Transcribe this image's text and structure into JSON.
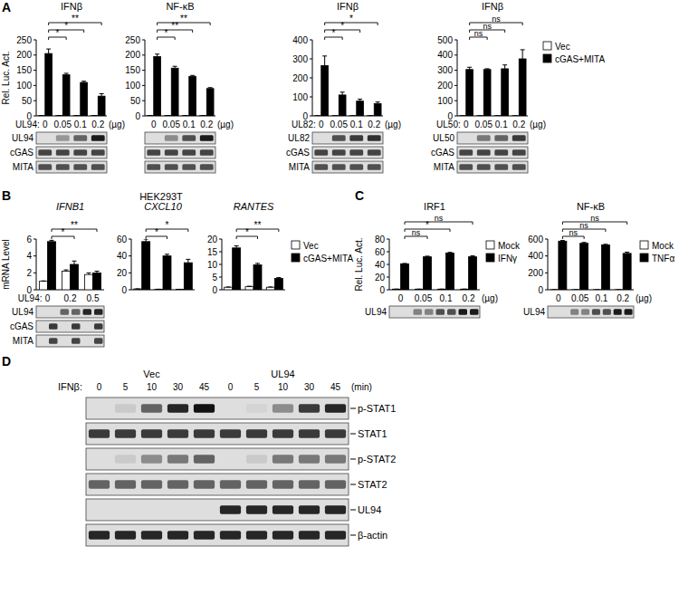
{
  "figure": {
    "panel_labels": [
      "A",
      "B",
      "C",
      "D"
    ],
    "panel_b_title": "HEK293T"
  },
  "chart_data": [
    {
      "type": "bar",
      "title": "IFNβ",
      "y_label": "Rel. Luc. Act.",
      "x_prefix": "UL94:",
      "x_unit": "(µg)",
      "categories": [
        "0",
        "0.05",
        "0.1",
        "0.2"
      ],
      "series": [
        {
          "name": "Vec",
          "color": "#ffffff",
          "values": [
            1,
            1,
            1,
            1
          ],
          "errors": [
            0.3,
            0.3,
            0.3,
            0.3
          ]
        },
        {
          "name": "cGAS+MITA",
          "color": "#000000",
          "values": [
            205,
            135,
            110,
            65
          ],
          "errors": [
            15,
            5,
            4,
            8
          ]
        }
      ],
      "ylim": [
        0,
        250
      ],
      "yticks": [
        0,
        50,
        100,
        150,
        200,
        250
      ],
      "significance": [
        null,
        "*",
        "*",
        "**"
      ],
      "blot": {
        "rows": [
          {
            "label": "UL94",
            "bands": [
              0,
              0.35,
              0.6,
              0.95
            ]
          },
          {
            "label": "cGAS",
            "bands": [
              0.75,
              0.75,
              0.75,
              0.75
            ]
          },
          {
            "label": "MITA",
            "bands": [
              0.7,
              0.7,
              0.7,
              0.7
            ]
          }
        ]
      }
    },
    {
      "type": "bar",
      "title": "NF-κB",
      "x_unit": "(µg)",
      "categories": [
        "0",
        "0.05",
        "0.1",
        "0.2"
      ],
      "series": [
        {
          "name": "Vec",
          "color": "#ffffff",
          "values": [
            1,
            1,
            1,
            1
          ],
          "errors": [
            0.3,
            0.3,
            0.3,
            0.3
          ]
        },
        {
          "name": "cGAS+MITA",
          "color": "#000000",
          "values": [
            195,
            157,
            130,
            90
          ],
          "errors": [
            8,
            6,
            3,
            3
          ]
        }
      ],
      "ylim": [
        0,
        250
      ],
      "yticks": [
        0,
        50,
        100,
        150,
        200,
        250
      ],
      "significance": [
        null,
        "*",
        "**",
        "**"
      ],
      "blot": {
        "rows": [
          {
            "bands": [
              0,
              0.4,
              0.7,
              0.95
            ]
          },
          {
            "bands": [
              0.75,
              0.75,
              0.75,
              0.75
            ]
          },
          {
            "bands": [
              0.7,
              0.7,
              0.7,
              0.7
            ]
          }
        ]
      }
    },
    {
      "type": "bar",
      "title": "IFNβ",
      "x_prefix": "UL82:",
      "x_unit": "(µg)",
      "categories": [
        "0",
        "0.05",
        "0.1",
        "0.2"
      ],
      "series": [
        {
          "name": "Vec",
          "color": "#ffffff",
          "values": [
            1,
            1,
            1,
            1
          ],
          "errors": [
            0.3,
            0.3,
            0.3,
            0.3
          ]
        },
        {
          "name": "cGAS+MITA",
          "color": "#000000",
          "values": [
            265,
            110,
            78,
            65
          ],
          "errors": [
            50,
            15,
            10,
            8
          ]
        }
      ],
      "ylim": [
        0,
        400
      ],
      "yticks": [
        0,
        100,
        200,
        300,
        400
      ],
      "significance": [
        null,
        "*",
        "*",
        "*"
      ],
      "blot": {
        "rows": [
          {
            "label": "UL82",
            "bands": [
              0,
              0.7,
              0.8,
              0.85
            ]
          },
          {
            "label": "cGAS",
            "bands": [
              0.75,
              0.75,
              0.75,
              0.75
            ]
          },
          {
            "label": "MITA",
            "bands": [
              0.7,
              0.7,
              0.7,
              0.7
            ]
          }
        ]
      }
    },
    {
      "type": "bar",
      "title": "IFNβ",
      "x_prefix": "UL50:",
      "x_unit": "(µg)",
      "legend": "right",
      "categories": [
        "0",
        "0.05",
        "0.1",
        "0.2"
      ],
      "series": [
        {
          "name": "Vec",
          "color": "#ffffff",
          "values": [
            1,
            1,
            1,
            1
          ],
          "errors": [
            0.3,
            0.3,
            0.3,
            0.3
          ]
        },
        {
          "name": "cGAS+MITA",
          "color": "#000000",
          "values": [
            305,
            305,
            310,
            375
          ],
          "errors": [
            15,
            5,
            25,
            60
          ]
        }
      ],
      "ylim": [
        0,
        500
      ],
      "yticks": [
        0,
        100,
        200,
        300,
        400,
        500
      ],
      "significance": [
        null,
        "ns",
        "ns",
        "ns"
      ],
      "blot": {
        "rows": [
          {
            "label": "UL50",
            "bands": [
              0,
              0.5,
              0.6,
              0.8
            ]
          },
          {
            "label": "cGAS",
            "bands": [
              0.75,
              0.75,
              0.75,
              0.75
            ]
          },
          {
            "label": "MITA",
            "bands": [
              0.7,
              0.7,
              0.7,
              0.7
            ]
          }
        ]
      }
    },
    {
      "type": "bar",
      "title": "IFNB1",
      "y_label": "mRNA Level",
      "x_prefix": "UL94:",
      "categories": [
        "0",
        "0.2",
        "0.5"
      ],
      "series": [
        {
          "name": "Vec",
          "color": "#ffffff",
          "values": [
            1,
            2.2,
            1.8
          ],
          "errors": [
            0.05,
            0.15,
            0.2
          ]
        },
        {
          "name": "cGAS+MITA",
          "color": "#000000",
          "values": [
            5.7,
            3.0,
            2.0
          ],
          "errors": [
            0.15,
            0.4,
            0.2
          ]
        }
      ],
      "ylim": [
        0,
        6
      ],
      "yticks": [
        0,
        2,
        4,
        6
      ],
      "significance": [
        null,
        "*",
        "**"
      ],
      "blot": {
        "rows": [
          {
            "label": "UL94",
            "bands": [
              0,
              0,
              0.6,
              0.6,
              0.9,
              0.9
            ]
          },
          {
            "label": "cGAS",
            "bands": [
              0,
              0.8,
              0,
              0.8,
              0,
              0.8
            ]
          },
          {
            "label": "MITA",
            "bands": [
              0,
              0.75,
              0,
              0.75,
              0,
              0.75
            ]
          }
        ]
      }
    },
    {
      "type": "bar",
      "title": "CXCL10",
      "tick_labels": "y",
      "categories": [
        "0",
        "0.2",
        "0.5"
      ],
      "series": [
        {
          "name": "Vec",
          "color": "#ffffff",
          "values": [
            1,
            0.6,
            0.5
          ],
          "errors": [
            0.1,
            0.1,
            0.1
          ]
        },
        {
          "name": "cGAS+MITA",
          "color": "#000000",
          "values": [
            57,
            40,
            32
          ],
          "errors": [
            3,
            2,
            4
          ]
        }
      ],
      "ylim": [
        0,
        60
      ],
      "yticks": [
        0,
        20,
        40,
        60
      ],
      "significance": [
        null,
        "*",
        "*"
      ]
    },
    {
      "type": "bar",
      "title": "RANTES",
      "tick_labels": "y",
      "legend": "right",
      "categories": [
        "0",
        "0.2",
        "0.5"
      ],
      "series": [
        {
          "name": "Vec",
          "color": "#ffffff",
          "values": [
            1,
            1.2,
            1
          ],
          "errors": [
            0.1,
            0.2,
            0.1
          ]
        },
        {
          "name": "cGAS+MITA",
          "color": "#000000",
          "values": [
            16.5,
            9.8,
            4.5
          ],
          "errors": [
            0.8,
            0.6,
            0.3
          ]
        }
      ],
      "ylim": [
        0,
        20
      ],
      "yticks": [
        0,
        5,
        10,
        15,
        20
      ],
      "significance": [
        null,
        "*",
        "**"
      ]
    },
    {
      "type": "bar",
      "title": "IRF1",
      "y_label": "Rel. Luc. Act.",
      "x_unit": "(µg)",
      "legend": "right",
      "categories": [
        "0",
        "0.05",
        "0.1",
        "0.2"
      ],
      "series": [
        {
          "name": "Mock",
          "color": "#ffffff",
          "values": [
            1,
            1,
            1,
            1
          ],
          "errors": [
            0.1,
            0.1,
            0.1,
            0.1
          ]
        },
        {
          "name": "IFNγ",
          "color": "#000000",
          "values": [
            41,
            52,
            58,
            52
          ],
          "errors": [
            0.5,
            1,
            1,
            1.5
          ]
        }
      ],
      "ylim": [
        0,
        80
      ],
      "yticks": [
        0,
        20,
        40,
        60,
        80
      ],
      "significance": [
        null,
        "ns",
        "*",
        "ns"
      ],
      "blot": {
        "rows": [
          {
            "label": "UL94",
            "bands": [
              0,
              0,
              0.45,
              0.45,
              0.7,
              0.7,
              0.95,
              0.95
            ]
          }
        ]
      }
    },
    {
      "type": "bar",
      "title": "NF-κB",
      "x_unit": "(µg)",
      "legend": "right",
      "categories": [
        "0",
        "0.05",
        "0.1",
        "0.2"
      ],
      "series": [
        {
          "name": "Mock",
          "color": "#ffffff",
          "values": [
            1,
            1,
            1,
            1
          ],
          "errors": [
            0.5,
            0.5,
            0.5,
            0.5
          ]
        },
        {
          "name": "TNFα",
          "color": "#000000",
          "values": [
            575,
            550,
            530,
            430
          ],
          "errors": [
            8,
            10,
            8,
            15
          ]
        }
      ],
      "ylim": [
        0,
        600
      ],
      "yticks": [
        0,
        200,
        400,
        600
      ],
      "significance": [
        null,
        "ns",
        "ns",
        "ns"
      ],
      "blot": {
        "rows": [
          {
            "label": "UL94",
            "bands": [
              0,
              0,
              0.45,
              0.45,
              0.7,
              0.7,
              0.95,
              0.95
            ]
          }
        ]
      }
    }
  ],
  "blot_figure": {
    "treatment": "IFNβ:",
    "unit": "(min)",
    "groups": [
      "Vec",
      "UL94"
    ],
    "times": [
      0,
      5,
      10,
      30,
      45
    ],
    "rows": [
      {
        "label": "p-STAT1",
        "bands": [
          0,
          0.1,
          0.6,
          0.9,
          1.0,
          0,
          0.05,
          0.4,
          0.8,
          0.9
        ]
      },
      {
        "label": "STAT1",
        "bands": [
          0.8,
          0.8,
          0.8,
          0.8,
          0.8,
          0.8,
          0.8,
          0.8,
          0.8,
          0.8
        ]
      },
      {
        "label": "p-STAT2",
        "bands": [
          0,
          0.1,
          0.4,
          0.5,
          0.6,
          0,
          0.1,
          0.5,
          0.5,
          0.5
        ]
      },
      {
        "label": "STAT2",
        "bands": [
          0.6,
          0.6,
          0.6,
          0.6,
          0.6,
          0.6,
          0.6,
          0.6,
          0.6,
          0.6
        ]
      },
      {
        "label": "UL94",
        "bands": [
          0,
          0,
          0,
          0,
          0,
          0.9,
          0.9,
          0.9,
          0.9,
          0.9
        ]
      },
      {
        "label": "β-actin",
        "bands": [
          0.9,
          0.9,
          0.9,
          0.9,
          0.9,
          0.9,
          0.9,
          0.9,
          0.9,
          0.9
        ]
      }
    ]
  }
}
